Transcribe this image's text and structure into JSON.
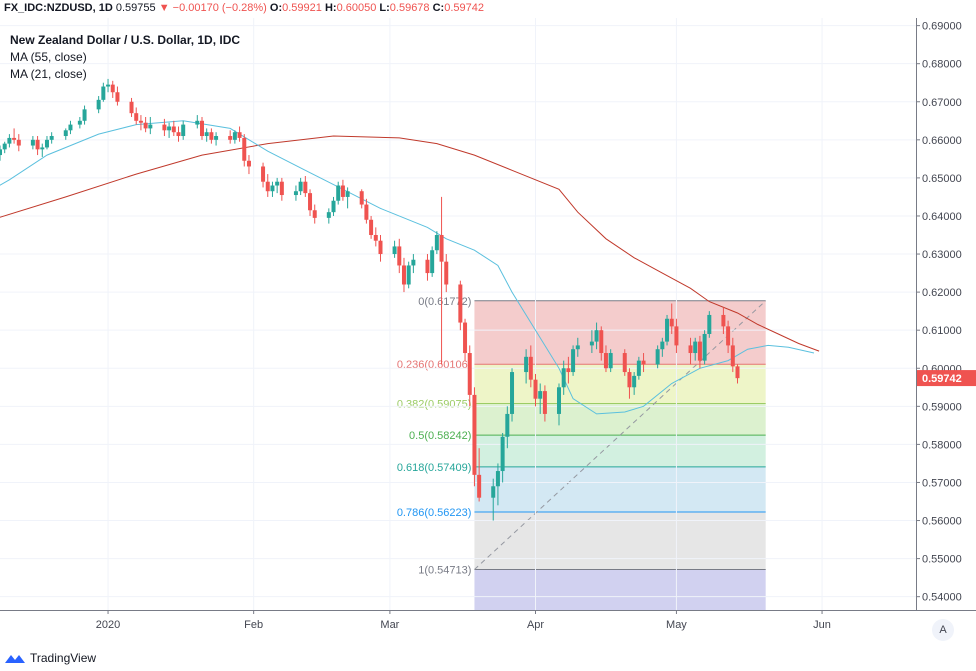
{
  "header": {
    "symbol": "FX_IDC:NZDUSD, 1D",
    "last": "0.59755",
    "change_arrow": "▼",
    "change": "−0.00170 (−0.28%)",
    "o_label": "O:",
    "o_value": "0.59921",
    "h_label": "H:",
    "h_value": "0.60050",
    "l_label": "L:",
    "l_value": "0.59678",
    "c_label": "C:",
    "c_value": "0.59742"
  },
  "legend": {
    "title": "New Zealand Dollar / U.S. Dollar, 1D, IDC",
    "ma55": "MA (55, close)",
    "ma21": "MA (21, close)"
  },
  "price_badge": "0.59742",
  "footer": {
    "brand": "TradingView"
  },
  "auto_button": "A",
  "colors": {
    "up": "#26a69a",
    "down": "#ef5350",
    "ma55": "#c0392b",
    "ma21": "#5bc0de"
  },
  "chart_data": {
    "type": "candlestick",
    "title": "New Zealand Dollar / U.S. Dollar, 1D, IDC",
    "y_ticks": [
      "0.69000",
      "0.68000",
      "0.67000",
      "0.66000",
      "0.65000",
      "0.64000",
      "0.63000",
      "0.62000",
      "0.61000",
      "0.60000",
      "0.59000",
      "0.58000",
      "0.57000",
      "0.56000",
      "0.55000",
      "0.54000"
    ],
    "y_tick_values": [
      0.69,
      0.68,
      0.67,
      0.66,
      0.65,
      0.64,
      0.63,
      0.62,
      0.61,
      0.6,
      0.59,
      0.58,
      0.57,
      0.56,
      0.55,
      0.54
    ],
    "ylim": [
      0.5365,
      0.692
    ],
    "x_ticks": [
      "2020",
      "Feb",
      "Mar",
      "Apr",
      "May",
      "Jun"
    ],
    "x_tick_dates": [
      "2020-01-01",
      "2020-02-01",
      "2020-03-01",
      "2020-04-01",
      "2020-05-01",
      "2020-06-01"
    ],
    "xlim": [
      "2019-12-09",
      "2020-06-21"
    ],
    "candles": [
      [
        "2019-12-09",
        0.656,
        0.6585,
        0.6545,
        0.6575
      ],
      [
        "2019-12-10",
        0.6575,
        0.6595,
        0.6565,
        0.659
      ],
      [
        "2019-12-11",
        0.659,
        0.6615,
        0.658,
        0.6605
      ],
      [
        "2019-12-12",
        0.6605,
        0.663,
        0.659,
        0.66
      ],
      [
        "2019-12-13",
        0.66,
        0.6615,
        0.657,
        0.6585
      ],
      [
        "2019-12-16",
        0.6585,
        0.661,
        0.6575,
        0.66
      ],
      [
        "2019-12-17",
        0.66,
        0.661,
        0.656,
        0.6575
      ],
      [
        "2019-12-18",
        0.6575,
        0.659,
        0.6555,
        0.658
      ],
      [
        "2019-12-19",
        0.658,
        0.661,
        0.6575,
        0.66
      ],
      [
        "2019-12-20",
        0.66,
        0.662,
        0.659,
        0.661
      ],
      [
        "2019-12-23",
        0.661,
        0.663,
        0.66,
        0.6625
      ],
      [
        "2019-12-24",
        0.6625,
        0.665,
        0.6615,
        0.664
      ],
      [
        "2019-12-26",
        0.664,
        0.666,
        0.663,
        0.665
      ],
      [
        "2019-12-27",
        0.665,
        0.669,
        0.664,
        0.668
      ],
      [
        "2019-12-30",
        0.668,
        0.6715,
        0.667,
        0.6705
      ],
      [
        "2019-12-31",
        0.6705,
        0.675,
        0.67,
        0.674
      ],
      [
        "2020-01-01",
        0.674,
        0.676,
        0.6725,
        0.6745
      ],
      [
        "2020-01-02",
        0.6745,
        0.6755,
        0.671,
        0.6725
      ],
      [
        "2020-01-03",
        0.6725,
        0.674,
        0.669,
        0.67
      ],
      [
        "2020-01-06",
        0.67,
        0.671,
        0.666,
        0.667
      ],
      [
        "2020-01-07",
        0.667,
        0.6685,
        0.664,
        0.665
      ],
      [
        "2020-01-08",
        0.665,
        0.6665,
        0.6625,
        0.6645
      ],
      [
        "2020-01-09",
        0.6645,
        0.666,
        0.662,
        0.663
      ],
      [
        "2020-01-10",
        0.663,
        0.666,
        0.6615,
        0.664
      ],
      [
        "2020-01-13",
        0.664,
        0.6655,
        0.661,
        0.6625
      ],
      [
        "2020-01-14",
        0.6625,
        0.6645,
        0.6605,
        0.6635
      ],
      [
        "2020-01-15",
        0.6635,
        0.665,
        0.661,
        0.662
      ],
      [
        "2020-01-16",
        0.662,
        0.6635,
        0.6595,
        0.661
      ],
      [
        "2020-01-17",
        0.661,
        0.665,
        0.66,
        0.664
      ],
      [
        "2020-01-20",
        0.664,
        0.6665,
        0.663,
        0.665
      ],
      [
        "2020-01-21",
        0.665,
        0.666,
        0.66,
        0.661
      ],
      [
        "2020-01-22",
        0.661,
        0.663,
        0.6595,
        0.662
      ],
      [
        "2020-01-23",
        0.662,
        0.663,
        0.659,
        0.66
      ],
      [
        "2020-01-24",
        0.66,
        0.662,
        0.6585,
        0.661
      ],
      [
        "2020-01-27",
        0.661,
        0.6625,
        0.659,
        0.66
      ],
      [
        "2020-01-28",
        0.66,
        0.6625,
        0.659,
        0.662
      ],
      [
        "2020-01-29",
        0.662,
        0.6635,
        0.6595,
        0.6605
      ],
      [
        "2020-01-30",
        0.6605,
        0.6615,
        0.653,
        0.6545
      ],
      [
        "2020-01-31",
        0.6545,
        0.656,
        0.651,
        0.653
      ],
      [
        "2020-02-03",
        0.653,
        0.654,
        0.6475,
        0.649
      ],
      [
        "2020-02-04",
        0.649,
        0.651,
        0.645,
        0.6465
      ],
      [
        "2020-02-05",
        0.6465,
        0.649,
        0.645,
        0.648
      ],
      [
        "2020-02-06",
        0.648,
        0.65,
        0.646,
        0.649
      ],
      [
        "2020-02-07",
        0.649,
        0.65,
        0.644,
        0.6455
      ],
      [
        "2020-02-10",
        0.6455,
        0.648,
        0.644,
        0.6465
      ],
      [
        "2020-02-11",
        0.6465,
        0.65,
        0.6455,
        0.649
      ],
      [
        "2020-02-12",
        0.649,
        0.6505,
        0.645,
        0.646
      ],
      [
        "2020-02-13",
        0.646,
        0.647,
        0.64,
        0.6415
      ],
      [
        "2020-02-14",
        0.6415,
        0.643,
        0.638,
        0.6395
      ],
      [
        "2020-02-17",
        0.6395,
        0.642,
        0.638,
        0.641
      ],
      [
        "2020-02-18",
        0.641,
        0.645,
        0.64,
        0.644
      ],
      [
        "2020-02-19",
        0.644,
        0.649,
        0.643,
        0.648
      ],
      [
        "2020-02-20",
        0.648,
        0.6495,
        0.644,
        0.645
      ],
      [
        "2020-02-21",
        0.645,
        0.6475,
        0.642,
        0.6465
      ],
      [
        "2020-02-24",
        0.6465,
        0.647,
        0.642,
        0.643
      ],
      [
        "2020-02-25",
        0.643,
        0.6445,
        0.638,
        0.639
      ],
      [
        "2020-02-26",
        0.639,
        0.64,
        0.634,
        0.635
      ],
      [
        "2020-02-27",
        0.635,
        0.637,
        0.632,
        0.6335
      ],
      [
        "2020-02-28",
        0.6335,
        0.635,
        0.628,
        0.63
      ],
      [
        "2020-03-02",
        0.63,
        0.6335,
        0.629,
        0.632
      ],
      [
        "2020-03-03",
        0.632,
        0.634,
        0.625,
        0.627
      ],
      [
        "2020-03-04",
        0.627,
        0.629,
        0.62,
        0.622
      ],
      [
        "2020-03-05",
        0.622,
        0.628,
        0.621,
        0.627
      ],
      [
        "2020-03-06",
        0.627,
        0.63,
        0.625,
        0.6285
      ],
      [
        "2020-03-09",
        0.6285,
        0.63,
        0.623,
        0.625
      ],
      [
        "2020-03-10",
        0.625,
        0.632,
        0.624,
        0.631
      ],
      [
        "2020-03-11",
        0.631,
        0.636,
        0.63,
        0.635
      ],
      [
        "2020-03-12",
        0.635,
        0.645,
        0.601,
        0.628
      ],
      [
        "2020-03-13",
        0.628,
        0.63,
        0.62,
        0.622
      ],
      [
        "2020-03-16",
        0.622,
        0.623,
        0.61,
        0.612
      ],
      [
        "2020-03-17",
        0.612,
        0.613,
        0.602,
        0.604
      ],
      [
        "2020-03-18",
        0.604,
        0.606,
        0.59,
        0.593
      ],
      [
        "2020-03-19",
        0.593,
        0.595,
        0.569,
        0.572
      ],
      [
        "2020-03-20",
        0.572,
        0.579,
        0.565,
        0.566
      ],
      [
        "2020-03-23",
        0.566,
        0.571,
        0.56,
        0.569
      ],
      [
        "2020-03-24",
        0.569,
        0.575,
        0.564,
        0.573
      ],
      [
        "2020-03-25",
        0.573,
        0.583,
        0.57,
        0.582
      ],
      [
        "2020-03-26",
        0.582,
        0.59,
        0.579,
        0.588
      ],
      [
        "2020-03-27",
        0.588,
        0.6,
        0.586,
        0.599
      ],
      [
        "2020-03-30",
        0.599,
        0.605,
        0.596,
        0.603
      ],
      [
        "2020-03-31",
        0.603,
        0.606,
        0.595,
        0.597
      ],
      [
        "2020-04-01",
        0.597,
        0.5985,
        0.59,
        0.592
      ],
      [
        "2020-04-02",
        0.592,
        0.596,
        0.588,
        0.594
      ],
      [
        "2020-04-03",
        0.594,
        0.5955,
        0.586,
        0.588
      ],
      [
        "2020-04-06",
        0.588,
        0.596,
        0.585,
        0.595
      ],
      [
        "2020-04-07",
        0.595,
        0.602,
        0.593,
        0.6
      ],
      [
        "2020-04-08",
        0.6,
        0.603,
        0.596,
        0.599
      ],
      [
        "2020-04-09",
        0.599,
        0.606,
        0.598,
        0.605
      ],
      [
        "2020-04-10",
        0.605,
        0.608,
        0.603,
        0.606
      ],
      [
        "2020-04-13",
        0.606,
        0.61,
        0.604,
        0.607
      ],
      [
        "2020-04-14",
        0.607,
        0.612,
        0.605,
        0.61
      ],
      [
        "2020-04-15",
        0.61,
        0.611,
        0.602,
        0.604
      ],
      [
        "2020-04-16",
        0.604,
        0.606,
        0.599,
        0.6
      ],
      [
        "2020-04-17",
        0.6,
        0.605,
        0.599,
        0.604
      ],
      [
        "2020-04-20",
        0.604,
        0.605,
        0.598,
        0.599
      ],
      [
        "2020-04-21",
        0.599,
        0.6,
        0.592,
        0.595
      ],
      [
        "2020-04-22",
        0.595,
        0.599,
        0.593,
        0.598
      ],
      [
        "2020-04-23",
        0.598,
        0.603,
        0.597,
        0.602
      ],
      [
        "2020-04-24",
        0.602,
        0.604,
        0.599,
        0.601
      ],
      [
        "2020-04-27",
        0.601,
        0.606,
        0.6,
        0.605
      ],
      [
        "2020-04-28",
        0.605,
        0.608,
        0.603,
        0.607
      ],
      [
        "2020-04-29",
        0.607,
        0.614,
        0.606,
        0.613
      ],
      [
        "2020-04-30",
        0.613,
        0.617,
        0.609,
        0.611
      ],
      [
        "2020-05-01",
        0.611,
        0.613,
        0.604,
        0.606
      ],
      [
        "2020-05-04",
        0.606,
        0.608,
        0.601,
        0.604
      ],
      [
        "2020-05-05",
        0.604,
        0.608,
        0.602,
        0.607
      ],
      [
        "2020-05-06",
        0.607,
        0.6085,
        0.6,
        0.602
      ],
      [
        "2020-05-07",
        0.602,
        0.61,
        0.601,
        0.609
      ],
      [
        "2020-05-08",
        0.609,
        0.615,
        0.608,
        0.614
      ],
      [
        "2020-05-11",
        0.614,
        0.616,
        0.609,
        0.611
      ],
      [
        "2020-05-12",
        0.611,
        0.6125,
        0.604,
        0.606
      ],
      [
        "2020-05-13",
        0.606,
        0.608,
        0.599,
        0.6005
      ],
      [
        "2020-05-14",
        0.6005,
        0.601,
        0.596,
        0.5974
      ]
    ],
    "ma55": [
      [
        -4,
        0.638
      ],
      [
        10,
        0.645
      ],
      [
        20,
        0.651
      ],
      [
        30,
        0.656
      ],
      [
        40,
        0.659
      ],
      [
        50,
        0.661
      ],
      [
        60,
        0.6605
      ],
      [
        66,
        0.659
      ],
      [
        72,
        0.656
      ],
      [
        78,
        0.652
      ],
      [
        84,
        0.647
      ],
      [
        88,
        0.641
      ],
      [
        92,
        0.634
      ],
      [
        96,
        0.629
      ],
      [
        100,
        0.625
      ],
      [
        104,
        0.621
      ],
      [
        108,
        0.6175
      ],
      [
        112,
        0.6145
      ],
      [
        116,
        0.6115
      ],
      [
        120,
        0.609
      ],
      [
        124,
        0.6065
      ],
      [
        128,
        0.6045
      ]
    ],
    "ma21": [
      [
        -4,
        0.645
      ],
      [
        2,
        0.6495
      ],
      [
        8,
        0.656
      ],
      [
        14,
        0.6615
      ],
      [
        20,
        0.664
      ],
      [
        28,
        0.665
      ],
      [
        34,
        0.663
      ],
      [
        40,
        0.657
      ],
      [
        46,
        0.652
      ],
      [
        52,
        0.647
      ],
      [
        58,
        0.642
      ],
      [
        64,
        0.637
      ],
      [
        68,
        0.634
      ],
      [
        72,
        0.631
      ],
      [
        75,
        0.627
      ],
      [
        78,
        0.62
      ],
      [
        81,
        0.61
      ],
      [
        84,
        0.6
      ],
      [
        87,
        0.592
      ],
      [
        90,
        0.588
      ],
      [
        94,
        0.5885
      ],
      [
        98,
        0.59
      ],
      [
        102,
        0.596
      ],
      [
        106,
        0.6
      ],
      [
        110,
        0.602
      ],
      [
        114,
        0.605
      ],
      [
        118,
        0.606
      ],
      [
        122,
        0.6055
      ],
      [
        127,
        0.604
      ]
    ],
    "fibonacci": {
      "start_date": "2020-03-19",
      "end_date": "2020-05-20",
      "levels": [
        {
          "label": "0(0.61772)",
          "value": 0.61772,
          "line": "#787b86",
          "fill": "#f4cccc"
        },
        {
          "label": "0.236(0.60106)",
          "value": 0.60106,
          "line": "#e57373",
          "fill": "#eef5c8"
        },
        {
          "label": "0.382(0.59075)",
          "value": 0.59075,
          "line": "#9ccc65",
          "fill": "#dcf1cf"
        },
        {
          "label": "0.5(0.58242)",
          "value": 0.58242,
          "line": "#4caf50",
          "fill": "#d2f0e0"
        },
        {
          "label": "0.618(0.57409)",
          "value": 0.57409,
          "line": "#26a69a",
          "fill": "#d3e8f3"
        },
        {
          "label": "0.786(0.56223)",
          "value": 0.56223,
          "line": "#2196f3",
          "fill": "#e6e6e6"
        },
        {
          "label": "1(0.54713)",
          "value": 0.54713,
          "line": "#787b86",
          "fill": "#d1d1f0"
        }
      ]
    },
    "last_price": 0.59742
  }
}
